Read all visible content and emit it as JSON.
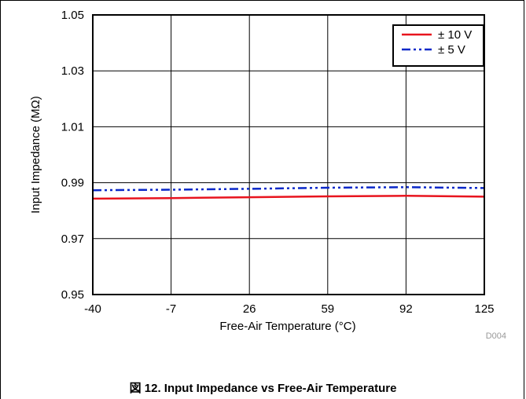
{
  "chart_data": {
    "type": "line",
    "title": "",
    "xlabel": "Free-Air Temperature (°C)",
    "ylabel": "Input Impedance (MΩ)",
    "x_ticks": [
      "-40",
      "-7",
      "26",
      "59",
      "92",
      "125"
    ],
    "y_ticks": [
      "0.95",
      "0.97",
      "0.99",
      "1.01",
      "1.03",
      "1.05"
    ],
    "xlim": [
      -40,
      125
    ],
    "ylim": [
      0.95,
      1.05
    ],
    "grid": true,
    "legend_position": "top-right",
    "series": [
      {
        "name": "± 10 V",
        "color": "#e8141e",
        "line_style": "solid",
        "x": [
          -40,
          -7,
          26,
          59,
          92,
          125
        ],
        "y": [
          0.9843,
          0.9845,
          0.9848,
          0.9851,
          0.9853,
          0.985
        ]
      },
      {
        "name": "± 5 V",
        "color": "#0a28c8",
        "line_style": "dash-dot-dot",
        "x": [
          -40,
          -7,
          26,
          59,
          92,
          125
        ],
        "y": [
          0.9873,
          0.9875,
          0.9878,
          0.9882,
          0.9884,
          0.9881
        ]
      }
    ],
    "annotations": [
      "D004"
    ]
  },
  "caption": {
    "prefix": "図",
    "text": "12. Input Impedance vs Free-Air Temperature"
  }
}
